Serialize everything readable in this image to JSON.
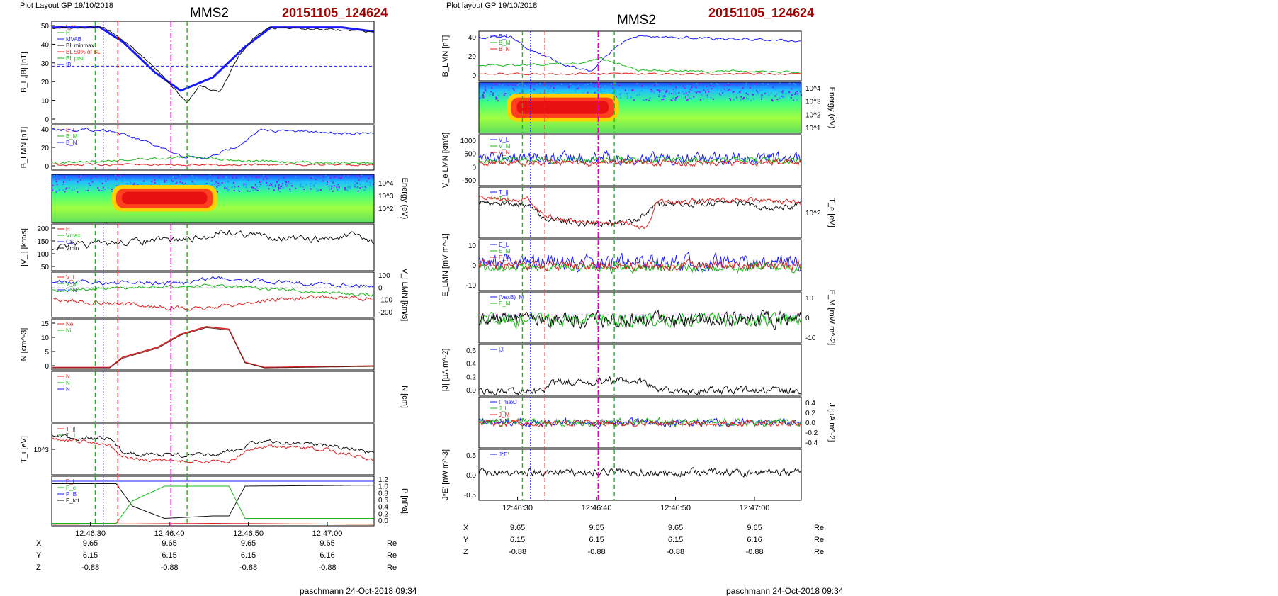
{
  "left": {
    "layout_label": "Plot Layout GP 19/10/2018",
    "title": "MMS2",
    "event_id": "20151105_124624",
    "footer": "paschmann 24-Oct-2018 09:34",
    "time_ticks": [
      "12:46:30",
      "12:46:40",
      "12:46:50",
      "12:47:00"
    ],
    "ephem": [
      {
        "label": "X",
        "values": [
          "9.65",
          "9.65",
          "9.65",
          "9.65"
        ],
        "unit": "Re"
      },
      {
        "label": "Y",
        "values": [
          "6.15",
          "6.15",
          "6.15",
          "6.16"
        ],
        "unit": "Re"
      },
      {
        "label": "Z",
        "values": [
          "-0.88",
          "-0.88",
          "-0.88",
          "-0.88"
        ],
        "unit": "Re"
      }
    ],
    "panels": [
      {
        "ylabel": "B_L,|B| [nT]",
        "ticks": [
          "50",
          "40",
          "30",
          "20",
          "10",
          "0"
        ],
        "legend": [
          "t_cs",
          "H",
          "MVAB",
          "BL minmax",
          "BL 50% of BL",
          "BL prst",
          "|B|"
        ]
      },
      {
        "ylabel": "B_LMN [nT]",
        "ticks": [
          "40",
          "20",
          "0"
        ],
        "legend": [
          "B_L",
          "B_M",
          "B_N"
        ]
      },
      {
        "ylabel": "Energy (eV)",
        "ticks": [
          "10^4",
          "10^3",
          "10^2"
        ],
        "legend": []
      },
      {
        "ylabel": "|V_i| [km/s]",
        "ticks": [
          "200",
          "150",
          "100",
          "50"
        ],
        "legend": [
          "H",
          "Vmax",
          "CS",
          "Vmin"
        ]
      },
      {
        "ylabel": "V_i LMN [km/s]",
        "ticks": [
          "100",
          "0",
          "-100",
          "-200"
        ],
        "legend": [
          "V_L",
          "V_M",
          "V_N"
        ]
      },
      {
        "ylabel": "N [cm^-3]",
        "ticks": [
          "15",
          "10",
          "5",
          "0"
        ],
        "legend": [
          "Ne",
          "Ni"
        ]
      },
      {
        "ylabel": "N [cm]",
        "ticks": [],
        "legend": [
          "N",
          "N",
          "N"
        ]
      },
      {
        "ylabel": "T_i [eV]",
        "ticks": [
          "10^3"
        ],
        "legend": [
          "T_||",
          "T_⊥"
        ]
      },
      {
        "ylabel": "P [nPa]",
        "ticks": [
          "1.2",
          "1.0",
          "0.8",
          "0.6",
          "0.4",
          "0.2",
          "0.0"
        ],
        "legend": [
          "P_i",
          "P_e",
          "P_B",
          "P_tot"
        ]
      }
    ]
  },
  "right": {
    "layout_label": "Plot layout GP 19/10/2018",
    "title": "MMS2",
    "event_id": "20151105_124624",
    "footer": "paschmann 24-Oct-2018 09:34",
    "time_ticks": [
      "12:46:30",
      "12:46:40",
      "12:46:50",
      "12:47:00"
    ],
    "ephem": [
      {
        "label": "X",
        "values": [
          "9.65",
          "9.65",
          "9.65",
          "9.65"
        ],
        "unit": "Re"
      },
      {
        "label": "Y",
        "values": [
          "6.15",
          "6.15",
          "6.15",
          "6.16"
        ],
        "unit": "Re"
      },
      {
        "label": "Z",
        "values": [
          "-0.88",
          "-0.88",
          "-0.88",
          "-0.88"
        ],
        "unit": "Re"
      }
    ],
    "panels": [
      {
        "ylabel": "B_LMN [nT]",
        "ticks": [
          "40",
          "20",
          "0"
        ],
        "legend": [
          "B_L",
          "B_M",
          "B_N"
        ]
      },
      {
        "ylabel": "Energy (eV)",
        "ticks": [
          "10^4",
          "10^3",
          "10^2",
          "10^1"
        ],
        "legend": []
      },
      {
        "ylabel": "V_e LMN [km/s]",
        "ticks": [
          "1000",
          "500",
          "0",
          "-500"
        ],
        "legend": [
          "V_L",
          "V_M",
          "V_N"
        ]
      },
      {
        "ylabel": "T_e [eV]",
        "ticks": [
          "10^2"
        ],
        "legend": [
          "T_||",
          "T_⊥"
        ]
      },
      {
        "ylabel": "E_LMN [mV m^-1]",
        "ticks": [
          "10",
          "0",
          "-10"
        ],
        "legend": [
          "E_L",
          "E_M",
          "E_N"
        ]
      },
      {
        "ylabel": "E_M [mW m^-2]",
        "ticks": [
          "10",
          "0",
          "-10"
        ],
        "legend": [
          "(VexB)_M",
          "E_M"
        ]
      },
      {
        "ylabel": "|J| [µA m^-2]",
        "ticks": [
          "0.6",
          "0.4",
          "0.2",
          "0.0"
        ],
        "legend": [
          "|J|"
        ]
      },
      {
        "ylabel": "J [µA m^-2]",
        "ticks": [
          "0.4",
          "0.2",
          "0.0",
          "-0.2",
          "-0.4"
        ],
        "legend": [
          "t_maxJ",
          "J_L",
          "J_M",
          "J_N"
        ]
      },
      {
        "ylabel": "J*E' [nW m^-3]",
        "ticks": [
          "0.5",
          "0.0",
          "-0.5"
        ],
        "legend": [
          "J*E'"
        ]
      }
    ]
  },
  "colors": {
    "red": "#e02020",
    "green": "#18b818",
    "blue": "#1a1aff",
    "black": "#111111",
    "magenta": "#e000c0",
    "dark_red": "#a00000",
    "title_red": "#a00000"
  }
}
